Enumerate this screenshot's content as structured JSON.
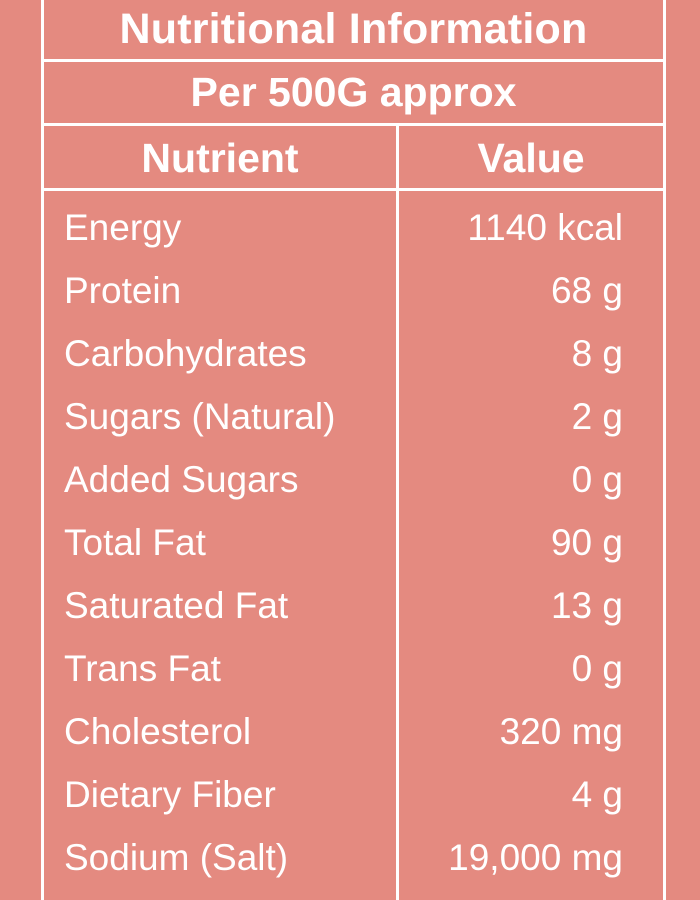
{
  "title": "Nutritional Information",
  "subtitle": "Per 500G approx",
  "columns": {
    "nutrient": "Nutrient",
    "value": "Value"
  },
  "rows": [
    {
      "nutrient": "Energy",
      "value": "1140 kcal"
    },
    {
      "nutrient": "Protein",
      "value": "68 g"
    },
    {
      "nutrient": "Carbohydrates",
      "value": "8 g"
    },
    {
      "nutrient": "Sugars (Natural)",
      "value": "2 g"
    },
    {
      "nutrient": "Added Sugars",
      "value": "0 g"
    },
    {
      "nutrient": "Total Fat",
      "value": "90 g"
    },
    {
      "nutrient": "Saturated Fat",
      "value": "13 g"
    },
    {
      "nutrient": "Trans Fat",
      "value": "0 g"
    },
    {
      "nutrient": "Cholesterol",
      "value": "320 mg"
    },
    {
      "nutrient": "Dietary Fiber",
      "value": "4 g"
    },
    {
      "nutrient": "Sodium (Salt)",
      "value": "19,000 mg"
    }
  ],
  "colors": {
    "background": "#e48a80",
    "lines": "#ffffff",
    "text": "#ffffff"
  }
}
